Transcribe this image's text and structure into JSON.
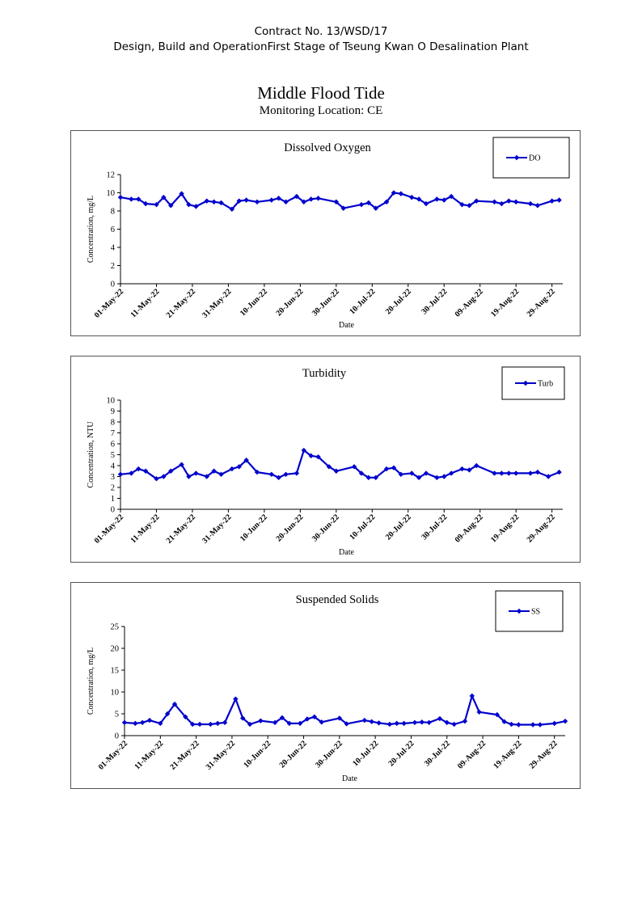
{
  "header": {
    "line1": "Contract No. 13/WSD/17",
    "line2": "Design, Build and OperationFirst Stage  of Tseung Kwan O Desalination Plant"
  },
  "page_title": "Middle Flood Tide",
  "subtitle": "Monitoring Location: CE",
  "series_color": "#0000CC",
  "chart_data": [
    {
      "type": "line",
      "title": "Dissolved Oxygen",
      "xlabel": "Date",
      "ylabel": "Concentration, mg/L",
      "series_name": "DO",
      "ylim": [
        0,
        12
      ],
      "yticks": [
        0,
        2,
        4,
        6,
        8,
        10,
        12
      ],
      "xlim": [
        "2022-05-01",
        "2022-09-01"
      ],
      "xtick_labels": [
        "01-May-22",
        "11-May-22",
        "21-May-22",
        "31-May-22",
        "10-Jun-22",
        "20-Jun-22",
        "30-Jun-22",
        "10-Jul-22",
        "20-Jul-22",
        "30-Jul-22",
        "09-Aug-22",
        "19-Aug-22",
        "29-Aug-22"
      ],
      "legend": "top-right",
      "grid": false,
      "x": [
        "2022-05-01",
        "2022-05-04",
        "2022-05-06",
        "2022-05-08",
        "2022-05-11",
        "2022-05-13",
        "2022-05-15",
        "2022-05-18",
        "2022-05-20",
        "2022-05-22",
        "2022-05-25",
        "2022-05-27",
        "2022-05-29",
        "2022-06-01",
        "2022-06-03",
        "2022-06-05",
        "2022-06-08",
        "2022-06-12",
        "2022-06-14",
        "2022-06-16",
        "2022-06-19",
        "2022-06-21",
        "2022-06-23",
        "2022-06-25",
        "2022-06-30",
        "2022-07-02",
        "2022-07-07",
        "2022-07-09",
        "2022-07-11",
        "2022-07-14",
        "2022-07-16",
        "2022-07-18",
        "2022-07-21",
        "2022-07-23",
        "2022-07-25",
        "2022-07-28",
        "2022-07-30",
        "2022-08-01",
        "2022-08-04",
        "2022-08-06",
        "2022-08-08",
        "2022-08-13",
        "2022-08-15",
        "2022-08-17",
        "2022-08-19",
        "2022-08-23",
        "2022-08-25",
        "2022-08-29",
        "2022-08-31"
      ],
      "y": [
        9.5,
        9.3,
        9.3,
        8.8,
        8.7,
        9.5,
        8.6,
        9.9,
        8.7,
        8.5,
        9.1,
        9.0,
        8.9,
        8.2,
        9.1,
        9.2,
        9.0,
        9.2,
        9.4,
        9.0,
        9.6,
        9.0,
        9.3,
        9.4,
        9.0,
        8.3,
        8.7,
        8.9,
        8.3,
        9.0,
        10.0,
        9.9,
        9.5,
        9.3,
        8.8,
        9.3,
        9.2,
        9.6,
        8.7,
        8.6,
        9.1,
        9.0,
        8.8,
        9.1,
        9.0,
        8.8,
        8.6,
        9.1,
        9.2
      ]
    },
    {
      "type": "line",
      "title": "Turbidity",
      "xlabel": "Date",
      "ylabel": "Concentration, NTU",
      "series_name": "Turb",
      "ylim": [
        0,
        10
      ],
      "yticks": [
        0,
        1,
        2,
        3,
        4,
        5,
        6,
        7,
        8,
        9,
        10
      ],
      "xlim": [
        "2022-05-01",
        "2022-09-01"
      ],
      "xtick_labels": [
        "01-May-22",
        "11-May-22",
        "21-May-22",
        "31-May-22",
        "10-Jun-22",
        "20-Jun-22",
        "30-Jun-22",
        "10-Jul-22",
        "20-Jul-22",
        "30-Jul-22",
        "09-Aug-22",
        "19-Aug-22",
        "29-Aug-22"
      ],
      "legend": "top-right",
      "grid": false,
      "x": [
        "2022-05-01",
        "2022-05-04",
        "2022-05-06",
        "2022-05-08",
        "2022-05-11",
        "2022-05-13",
        "2022-05-15",
        "2022-05-18",
        "2022-05-20",
        "2022-05-22",
        "2022-05-25",
        "2022-05-27",
        "2022-05-29",
        "2022-06-01",
        "2022-06-03",
        "2022-06-05",
        "2022-06-08",
        "2022-06-12",
        "2022-06-14",
        "2022-06-16",
        "2022-06-19",
        "2022-06-21",
        "2022-06-23",
        "2022-06-25",
        "2022-06-28",
        "2022-06-30",
        "2022-07-05",
        "2022-07-07",
        "2022-07-09",
        "2022-07-11",
        "2022-07-14",
        "2022-07-16",
        "2022-07-18",
        "2022-07-21",
        "2022-07-23",
        "2022-07-25",
        "2022-07-28",
        "2022-07-30",
        "2022-08-01",
        "2022-08-04",
        "2022-08-06",
        "2022-08-08",
        "2022-08-13",
        "2022-08-15",
        "2022-08-17",
        "2022-08-19",
        "2022-08-23",
        "2022-08-25",
        "2022-08-28",
        "2022-08-31"
      ],
      "y": [
        3.2,
        3.3,
        3.7,
        3.5,
        2.8,
        3.0,
        3.5,
        4.1,
        3.0,
        3.3,
        3.0,
        3.5,
        3.2,
        3.7,
        3.9,
        4.5,
        3.4,
        3.2,
        2.9,
        3.2,
        3.3,
        5.4,
        4.9,
        4.8,
        3.9,
        3.5,
        3.9,
        3.3,
        2.9,
        2.9,
        3.7,
        3.8,
        3.2,
        3.3,
        2.9,
        3.3,
        2.9,
        3.0,
        3.3,
        3.7,
        3.6,
        4.0,
        3.3,
        3.3,
        3.3,
        3.3,
        3.3,
        3.4,
        3.0,
        3.4
      ]
    },
    {
      "type": "line",
      "title": "Suspended Solids",
      "xlabel": "Date",
      "ylabel": "Concentration, mg/L",
      "series_name": "SS",
      "ylim": [
        0,
        25
      ],
      "yticks": [
        0,
        5,
        10,
        15,
        20,
        25
      ],
      "xlim": [
        "2022-05-01",
        "2022-09-01"
      ],
      "xtick_labels": [
        "01-May-22",
        "11-May-22",
        "21-May-22",
        "31-May-22",
        "10-Jun-22",
        "20-Jun-22",
        "30-Jun-22",
        "10-Jul-22",
        "20-Jul-22",
        "30-Jul-22",
        "09-Aug-22",
        "19-Aug-22",
        "29-Aug-22"
      ],
      "legend": "top-right",
      "grid": false,
      "x": [
        "2022-05-01",
        "2022-05-04",
        "2022-05-06",
        "2022-05-08",
        "2022-05-11",
        "2022-05-13",
        "2022-05-15",
        "2022-05-18",
        "2022-05-20",
        "2022-05-22",
        "2022-05-25",
        "2022-05-27",
        "2022-05-29",
        "2022-06-01",
        "2022-06-03",
        "2022-06-05",
        "2022-06-08",
        "2022-06-12",
        "2022-06-14",
        "2022-06-16",
        "2022-06-19",
        "2022-06-21",
        "2022-06-23",
        "2022-06-25",
        "2022-06-30",
        "2022-07-02",
        "2022-07-07",
        "2022-07-09",
        "2022-07-11",
        "2022-07-14",
        "2022-07-16",
        "2022-07-18",
        "2022-07-21",
        "2022-07-23",
        "2022-07-25",
        "2022-07-28",
        "2022-07-30",
        "2022-08-01",
        "2022-08-04",
        "2022-08-06",
        "2022-08-08",
        "2022-08-13",
        "2022-08-15",
        "2022-08-17",
        "2022-08-19",
        "2022-08-23",
        "2022-08-25",
        "2022-08-29",
        "2022-09-01"
      ],
      "y": [
        3.0,
        2.8,
        3.0,
        3.5,
        2.8,
        5.0,
        7.2,
        4.3,
        2.6,
        2.6,
        2.6,
        2.8,
        3.0,
        8.4,
        4.0,
        2.6,
        3.4,
        3.0,
        4.1,
        2.8,
        2.8,
        3.8,
        4.3,
        3.1,
        4.0,
        2.7,
        3.5,
        3.2,
        2.9,
        2.6,
        2.8,
        2.8,
        3.0,
        3.1,
        3.0,
        3.9,
        3.0,
        2.6,
        3.3,
        9.1,
        5.4,
        4.8,
        3.2,
        2.6,
        2.5,
        2.5,
        2.5,
        2.8,
        3.3
      ]
    }
  ]
}
